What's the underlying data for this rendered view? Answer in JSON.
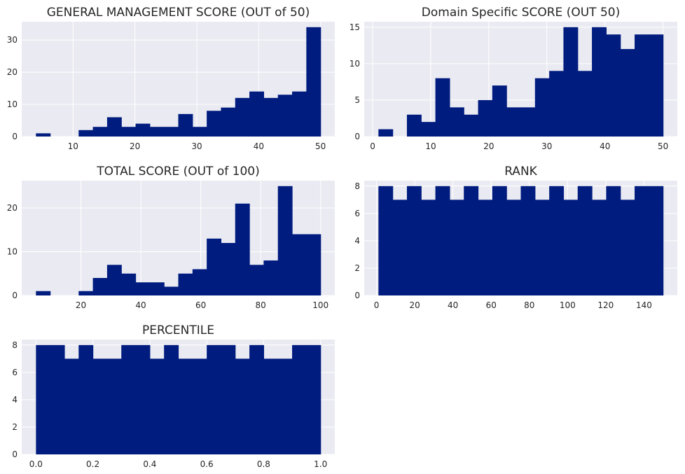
{
  "chart_data": [
    {
      "type": "bar",
      "title": "GENERAL MANAGEMENT SCORE (OUT of 50)",
      "xlabel": "",
      "ylabel": "",
      "bin_edges": [
        4.0,
        6.3,
        8.6,
        10.9,
        13.2,
        15.5,
        17.8,
        20.1,
        22.4,
        24.7,
        27.0,
        29.3,
        31.6,
        33.9,
        36.2,
        38.5,
        40.8,
        43.1,
        45.4,
        47.7,
        50.0
      ],
      "values": [
        1,
        0,
        0,
        2,
        3,
        6,
        3,
        4,
        3,
        3,
        7,
        3,
        8,
        9,
        12,
        14,
        12,
        13,
        14,
        34
      ],
      "xlim": [
        1.7,
        52.3
      ],
      "ylim": [
        0,
        35.7
      ],
      "xticks": [
        10,
        20,
        30,
        40,
        50
      ],
      "yticks": [
        0,
        10,
        20,
        30
      ],
      "grid": true
    },
    {
      "type": "bar",
      "title": "Domain Specific SCORE (OUT 50)",
      "xlabel": "",
      "ylabel": "",
      "bin_edges": [
        1.0,
        3.45,
        5.9,
        8.35,
        10.8,
        13.25,
        15.7,
        18.15,
        20.6,
        23.05,
        25.5,
        27.95,
        30.4,
        32.85,
        35.3,
        37.75,
        40.2,
        42.65,
        45.1,
        47.55,
        50.0
      ],
      "values": [
        1,
        0,
        3,
        2,
        8,
        4,
        3,
        5,
        7,
        4,
        4,
        8,
        9,
        15,
        9,
        15,
        14,
        12,
        14,
        14
      ],
      "xlim": [
        -1.45,
        52.45
      ],
      "ylim": [
        0,
        15.75
      ],
      "xticks": [
        0,
        10,
        20,
        30,
        40,
        50
      ],
      "yticks": [
        0,
        5,
        10,
        15
      ],
      "grid": true
    },
    {
      "type": "bar",
      "title": "TOTAL SCORE (OUT of 100)",
      "xlabel": "",
      "ylabel": "",
      "bin_edges": [
        5.0,
        9.75,
        14.5,
        19.25,
        24.0,
        28.75,
        33.5,
        38.25,
        43.0,
        47.75,
        52.5,
        57.25,
        62.0,
        66.75,
        71.5,
        76.25,
        81.0,
        85.75,
        90.5,
        95.25,
        100.0
      ],
      "values": [
        1,
        0,
        0,
        1,
        4,
        7,
        5,
        3,
        3,
        2,
        5,
        6,
        13,
        12,
        21,
        7,
        8,
        25,
        14,
        14
      ],
      "xlim": [
        0.25,
        104.75
      ],
      "ylim": [
        0,
        26.25
      ],
      "xticks": [
        20,
        40,
        60,
        80,
        100
      ],
      "yticks": [
        0,
        10,
        20
      ],
      "grid": true
    },
    {
      "type": "bar",
      "title": "RANK",
      "xlabel": "",
      "ylabel": "",
      "bin_edges": [
        1.0,
        8.45,
        15.9,
        23.35,
        30.8,
        38.25,
        45.7,
        53.15,
        60.6,
        68.05,
        75.5,
        82.95,
        90.4,
        97.85,
        105.3,
        112.75,
        120.2,
        127.65,
        135.1,
        142.55,
        150.0
      ],
      "values": [
        8,
        7,
        8,
        7,
        8,
        7,
        8,
        7,
        8,
        7,
        8,
        7,
        8,
        7,
        8,
        7,
        8,
        7,
        8,
        8
      ],
      "xlim": [
        -6.45,
        157.45
      ],
      "ylim": [
        0,
        8.4
      ],
      "xticks": [
        0,
        20,
        40,
        60,
        80,
        100,
        120,
        140
      ],
      "yticks": [
        0,
        2,
        4,
        6,
        8
      ],
      "grid": true
    },
    {
      "type": "bar",
      "title": "PERCENTILE",
      "xlabel": "",
      "ylabel": "",
      "bin_edges": [
        0.0,
        0.05,
        0.1,
        0.15,
        0.2,
        0.25,
        0.3,
        0.35,
        0.4,
        0.45,
        0.5,
        0.55,
        0.6,
        0.65,
        0.7,
        0.75,
        0.8,
        0.85,
        0.9,
        0.95,
        1.0
      ],
      "values": [
        8,
        8,
        7,
        8,
        7,
        7,
        8,
        8,
        7,
        8,
        7,
        7,
        8,
        8,
        7,
        8,
        7,
        7,
        8,
        8
      ],
      "xlim": [
        -0.05,
        1.05
      ],
      "ylim": [
        0,
        8.4
      ],
      "xticks": [
        0.0,
        0.2,
        0.4,
        0.6,
        0.8,
        1.0
      ],
      "xtick_labels": [
        "0.0",
        "0.2",
        "0.4",
        "0.6",
        "0.8",
        "1.0"
      ],
      "yticks": [
        0,
        2,
        4,
        6,
        8
      ],
      "grid": true
    }
  ],
  "colors": {
    "bar": "#001c7f",
    "axes_background": "#eaeaf2",
    "grid": "#ffffff",
    "text": "#262626"
  }
}
